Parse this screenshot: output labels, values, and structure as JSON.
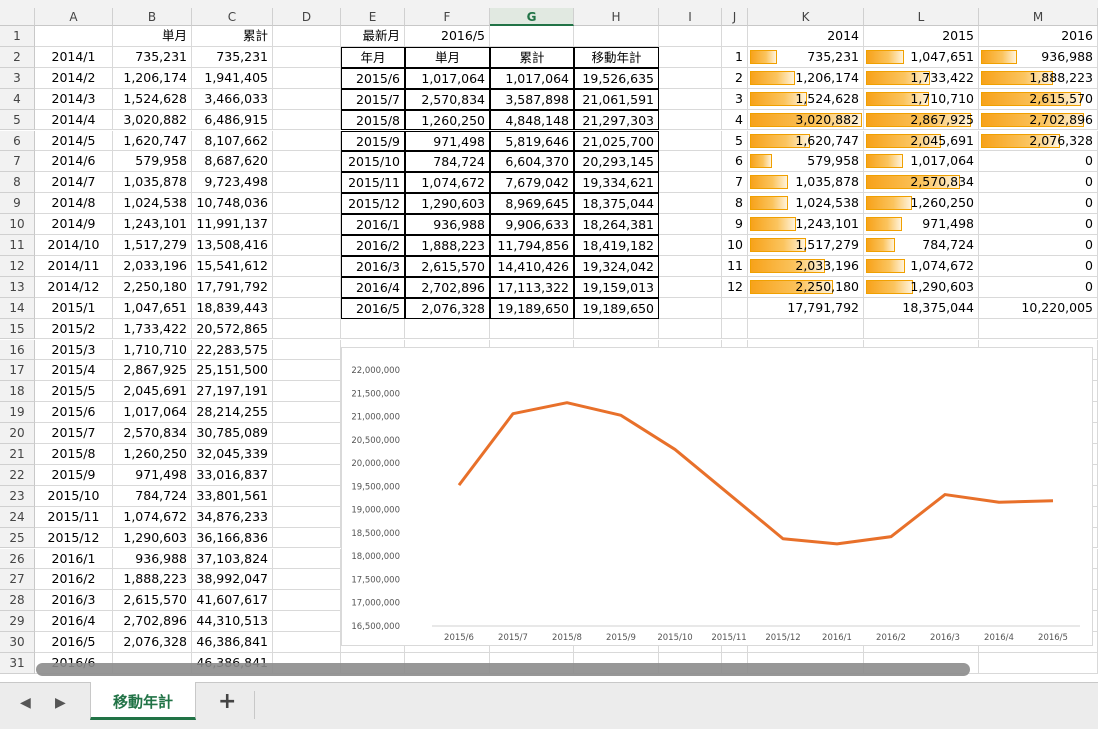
{
  "spreadsheet": {
    "columns": [
      "A",
      "B",
      "C",
      "D",
      "E",
      "F",
      "G",
      "H",
      "I",
      "J",
      "K",
      "L",
      "M"
    ],
    "selected_column": "G",
    "rows": [
      {
        "n": "1",
        "A": "",
        "B": "単月",
        "C": "累計",
        "E": "最新月",
        "F": "2016/5",
        "G": "",
        "H": "",
        "J": "",
        "K": "2014",
        "L": "2015",
        "M": "2016"
      },
      {
        "n": "2",
        "A": "2014/1",
        "B": "735,231",
        "C": "735,231",
        "E": "年月",
        "F": "単月",
        "G": "累計",
        "H": "移動年計",
        "J": "1",
        "K": "735,231",
        "L": "1,047,651",
        "M": "936,988"
      },
      {
        "n": "3",
        "A": "2014/2",
        "B": "1,206,174",
        "C": "1,941,405",
        "E": "2015/6",
        "F": "1,017,064",
        "G": "1,017,064",
        "H": "19,526,635",
        "J": "2",
        "K": "1,206,174",
        "L": "1,733,422",
        "M": "1,888,223"
      },
      {
        "n": "4",
        "A": "2014/3",
        "B": "1,524,628",
        "C": "3,466,033",
        "E": "2015/7",
        "F": "2,570,834",
        "G": "3,587,898",
        "H": "21,061,591",
        "J": "3",
        "K": "1,524,628",
        "L": "1,710,710",
        "M": "2,615,570"
      },
      {
        "n": "5",
        "A": "2014/4",
        "B": "3,020,882",
        "C": "6,486,915",
        "E": "2015/8",
        "F": "1,260,250",
        "G": "4,848,148",
        "H": "21,297,303",
        "J": "4",
        "K": "3,020,882",
        "L": "2,867,925",
        "M": "2,702,896"
      },
      {
        "n": "6",
        "A": "2014/5",
        "B": "1,620,747",
        "C": "8,107,662",
        "E": "2015/9",
        "F": "971,498",
        "G": "5,819,646",
        "H": "21,025,700",
        "J": "5",
        "K": "1,620,747",
        "L": "2,045,691",
        "M": "2,076,328"
      },
      {
        "n": "7",
        "A": "2014/6",
        "B": "579,958",
        "C": "8,687,620",
        "E": "2015/10",
        "F": "784,724",
        "G": "6,604,370",
        "H": "20,293,145",
        "J": "6",
        "K": "579,958",
        "L": "1,017,064",
        "M": "0"
      },
      {
        "n": "8",
        "A": "2014/7",
        "B": "1,035,878",
        "C": "9,723,498",
        "E": "2015/11",
        "F": "1,074,672",
        "G": "7,679,042",
        "H": "19,334,621",
        "J": "7",
        "K": "1,035,878",
        "L": "2,570,834",
        "M": "0"
      },
      {
        "n": "9",
        "A": "2014/8",
        "B": "1,024,538",
        "C": "10,748,036",
        "E": "2015/12",
        "F": "1,290,603",
        "G": "8,969,645",
        "H": "18,375,044",
        "J": "8",
        "K": "1,024,538",
        "L": "1,260,250",
        "M": "0"
      },
      {
        "n": "10",
        "A": "2014/9",
        "B": "1,243,101",
        "C": "11,991,137",
        "E": "2016/1",
        "F": "936,988",
        "G": "9,906,633",
        "H": "18,264,381",
        "J": "9",
        "K": "1,243,101",
        "L": "971,498",
        "M": "0"
      },
      {
        "n": "11",
        "A": "2014/10",
        "B": "1,517,279",
        "C": "13,508,416",
        "E": "2016/2",
        "F": "1,888,223",
        "G": "11,794,856",
        "H": "18,419,182",
        "J": "10",
        "K": "1,517,279",
        "L": "784,724",
        "M": "0"
      },
      {
        "n": "12",
        "A": "2014/11",
        "B": "2,033,196",
        "C": "15,541,612",
        "E": "2016/3",
        "F": "2,615,570",
        "G": "14,410,426",
        "H": "19,324,042",
        "J": "11",
        "K": "2,033,196",
        "L": "1,074,672",
        "M": "0"
      },
      {
        "n": "13",
        "A": "2014/12",
        "B": "2,250,180",
        "C": "17,791,792",
        "E": "2016/4",
        "F": "2,702,896",
        "G": "17,113,322",
        "H": "19,159,013",
        "J": "12",
        "K": "2,250,180",
        "L": "1,290,603",
        "M": "0"
      },
      {
        "n": "14",
        "A": "2015/1",
        "B": "1,047,651",
        "C": "18,839,443",
        "E": "2016/5",
        "F": "2,076,328",
        "G": "19,189,650",
        "H": "19,189,650",
        "J": "",
        "K": "17,791,792",
        "L": "18,375,044",
        "M": "10,220,005"
      },
      {
        "n": "15",
        "A": "2015/2",
        "B": "1,733,422",
        "C": "20,572,865"
      },
      {
        "n": "16",
        "A": "2015/3",
        "B": "1,710,710",
        "C": "22,283,575"
      },
      {
        "n": "17",
        "A": "2015/4",
        "B": "2,867,925",
        "C": "25,151,500"
      },
      {
        "n": "18",
        "A": "2015/5",
        "B": "2,045,691",
        "C": "27,197,191"
      },
      {
        "n": "19",
        "A": "2015/6",
        "B": "1,017,064",
        "C": "28,214,255"
      },
      {
        "n": "20",
        "A": "2015/7",
        "B": "2,570,834",
        "C": "30,785,089"
      },
      {
        "n": "21",
        "A": "2015/8",
        "B": "1,260,250",
        "C": "32,045,339"
      },
      {
        "n": "22",
        "A": "2015/9",
        "B": "971,498",
        "C": "33,016,837"
      },
      {
        "n": "23",
        "A": "2015/10",
        "B": "784,724",
        "C": "33,801,561"
      },
      {
        "n": "24",
        "A": "2015/11",
        "B": "1,074,672",
        "C": "34,876,233"
      },
      {
        "n": "25",
        "A": "2015/12",
        "B": "1,290,603",
        "C": "36,166,836"
      },
      {
        "n": "26",
        "A": "2016/1",
        "B": "936,988",
        "C": "37,103,824"
      },
      {
        "n": "27",
        "A": "2016/2",
        "B": "1,888,223",
        "C": "38,992,047"
      },
      {
        "n": "28",
        "A": "2016/3",
        "B": "2,615,570",
        "C": "41,607,617"
      },
      {
        "n": "29",
        "A": "2016/4",
        "B": "2,702,896",
        "C": "44,310,513"
      },
      {
        "n": "30",
        "A": "2016/5",
        "B": "2,076,328",
        "C": "46,386,841"
      },
      {
        "n": "31",
        "A": "2016/6",
        "B": "",
        "C": "46,386,841"
      }
    ],
    "data_bar_max": 3020882,
    "data_bar_color": "#f7a21a"
  },
  "chart_data": {
    "type": "line",
    "x": [
      "2015/6",
      "2015/7",
      "2015/8",
      "2015/9",
      "2015/10",
      "2015/11",
      "2015/12",
      "2016/1",
      "2016/2",
      "2016/3",
      "2016/4",
      "2016/5"
    ],
    "series": [
      {
        "values": [
          19526635,
          21061591,
          21297303,
          21025700,
          20293145,
          19334621,
          18375044,
          18264381,
          18419182,
          19324042,
          19159013,
          19189650
        ],
        "color": "#e8702a"
      }
    ],
    "ylim": [
      16500000,
      22000000
    ],
    "yticks": [
      "16,500,000",
      "17,000,000",
      "17,500,000",
      "18,000,000",
      "18,500,000",
      "19,000,000",
      "19,500,000",
      "20,000,000",
      "20,500,000",
      "21,000,000",
      "21,500,000",
      "22,000,000"
    ],
    "grid": false,
    "legend": "none"
  },
  "tabs": {
    "sheet_name": "移動年計",
    "add_label": "+",
    "prev_icon": "◀",
    "next_icon": "▶"
  }
}
